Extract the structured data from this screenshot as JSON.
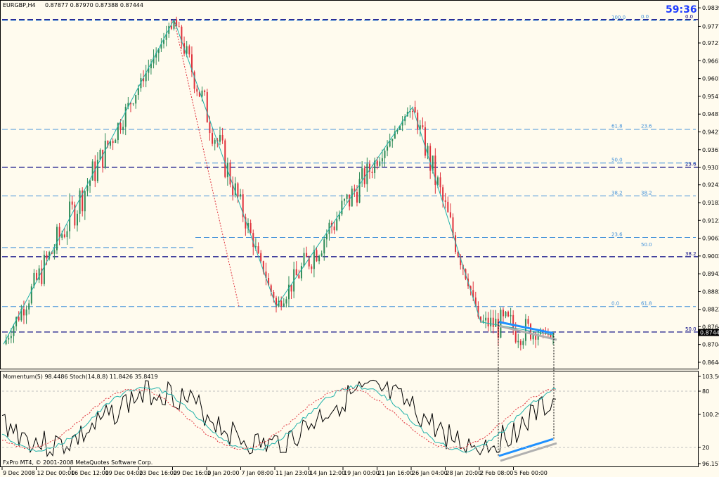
{
  "header": {
    "symbol": "EURGBP,H4",
    "ohlc": "0.87877 0.87970 0.87388 0.87444",
    "timer": "59:36"
  },
  "indicator_header": "Momentum(5) 98.4486  Stoch(14,8,8) 11.8426 35.8419",
  "copyright": "FxPro MT4, © 2001-2008 MetaQuotes Software Corp.",
  "colors": {
    "background": "#FFFBEE",
    "bull_candle": "#2E8B57",
    "bear_candle": "#E0303A",
    "zigzag": "#20B2AA",
    "fib_light": "#3E8FD9",
    "fib_dark": "#000080",
    "timer": "#1E3CFF",
    "divergence": "#1E90FF"
  },
  "chart_data": {
    "type": "candlestick",
    "price_axis": {
      "ticks": [
        "0.98395",
        "0.97770",
        "0.97210",
        "0.96610",
        "0.96010",
        "0.95410",
        "0.94810",
        "0.94210",
        "0.93610",
        "0.93010",
        "0.92425",
        "0.91825",
        "0.91225",
        "0.90625",
        "0.90025",
        "0.89425",
        "0.88825",
        "0.88225",
        "0.87640",
        "0.87040",
        "0.86440"
      ],
      "current": "0.87444",
      "ylim": [
        0.8632,
        0.9854
      ]
    },
    "time_axis": [
      "9 Dec 2008",
      "12 Dec 00:00",
      "16 Dec 12:00",
      "19 Dec 04:00",
      "23 Dec 16:00",
      "29 Dec 16:00",
      "2 Jan 20:00",
      "7 Jan 08:00",
      "11 Jan 23:00",
      "14 Jan 12:00",
      "19 Jan 00:00",
      "21 Jan 16:00",
      "26 Jan 04:00",
      "28 Jan 20:00",
      "2 Feb 08:00",
      "5 Feb 00:00"
    ],
    "pivots": [
      {
        "time": "9 Dec 2008",
        "price": 0.8705
      },
      {
        "time": "29 Dec 16:00",
        "price": 0.98
      },
      {
        "time": "11 Jan 23:00",
        "price": 0.8832
      },
      {
        "time": "26 Jan 04:00",
        "price": 0.9505
      },
      {
        "time": "2 Feb 08:00",
        "price": 0.878
      },
      {
        "time": "5 Feb 00:00",
        "price": 0.8736
      }
    ],
    "fib_levels_left": [
      {
        "label": "0.0",
        "price": 0.98
      },
      {
        "label": "23.6",
        "price": 0.9302
      },
      {
        "label": "38.2",
        "price": 0.9
      },
      {
        "label": "50.0",
        "price": 0.8746
      }
    ],
    "fib_levels_mid": [
      {
        "label": "100.0",
        "price": 0.9797
      },
      {
        "label": "61.8",
        "price": 0.943
      },
      {
        "label": "50.0",
        "price": 0.9316
      },
      {
        "label": "38.2",
        "price": 0.9205
      },
      {
        "label": "23.6",
        "price": 0.9065
      },
      {
        "label": "0.0",
        "price": 0.8832
      }
    ],
    "fib_levels_right": [
      {
        "label": "0.0",
        "price": 0.98
      },
      {
        "label": "23.6",
        "price": 0.943
      },
      {
        "label": "38.2",
        "price": 0.9205
      },
      {
        "label": "50.0",
        "price": 0.9031
      },
      {
        "label": "61.8",
        "price": 0.8832
      }
    ],
    "indicator_axis": {
      "momentum_ticks": [
        "103.5614",
        "100.2988",
        "96.1577"
      ],
      "stoch_ticks": [
        "80",
        "20"
      ]
    },
    "momentum_current": 98.4486,
    "stoch_main": 11.8426,
    "stoch_signal": 35.8419
  }
}
